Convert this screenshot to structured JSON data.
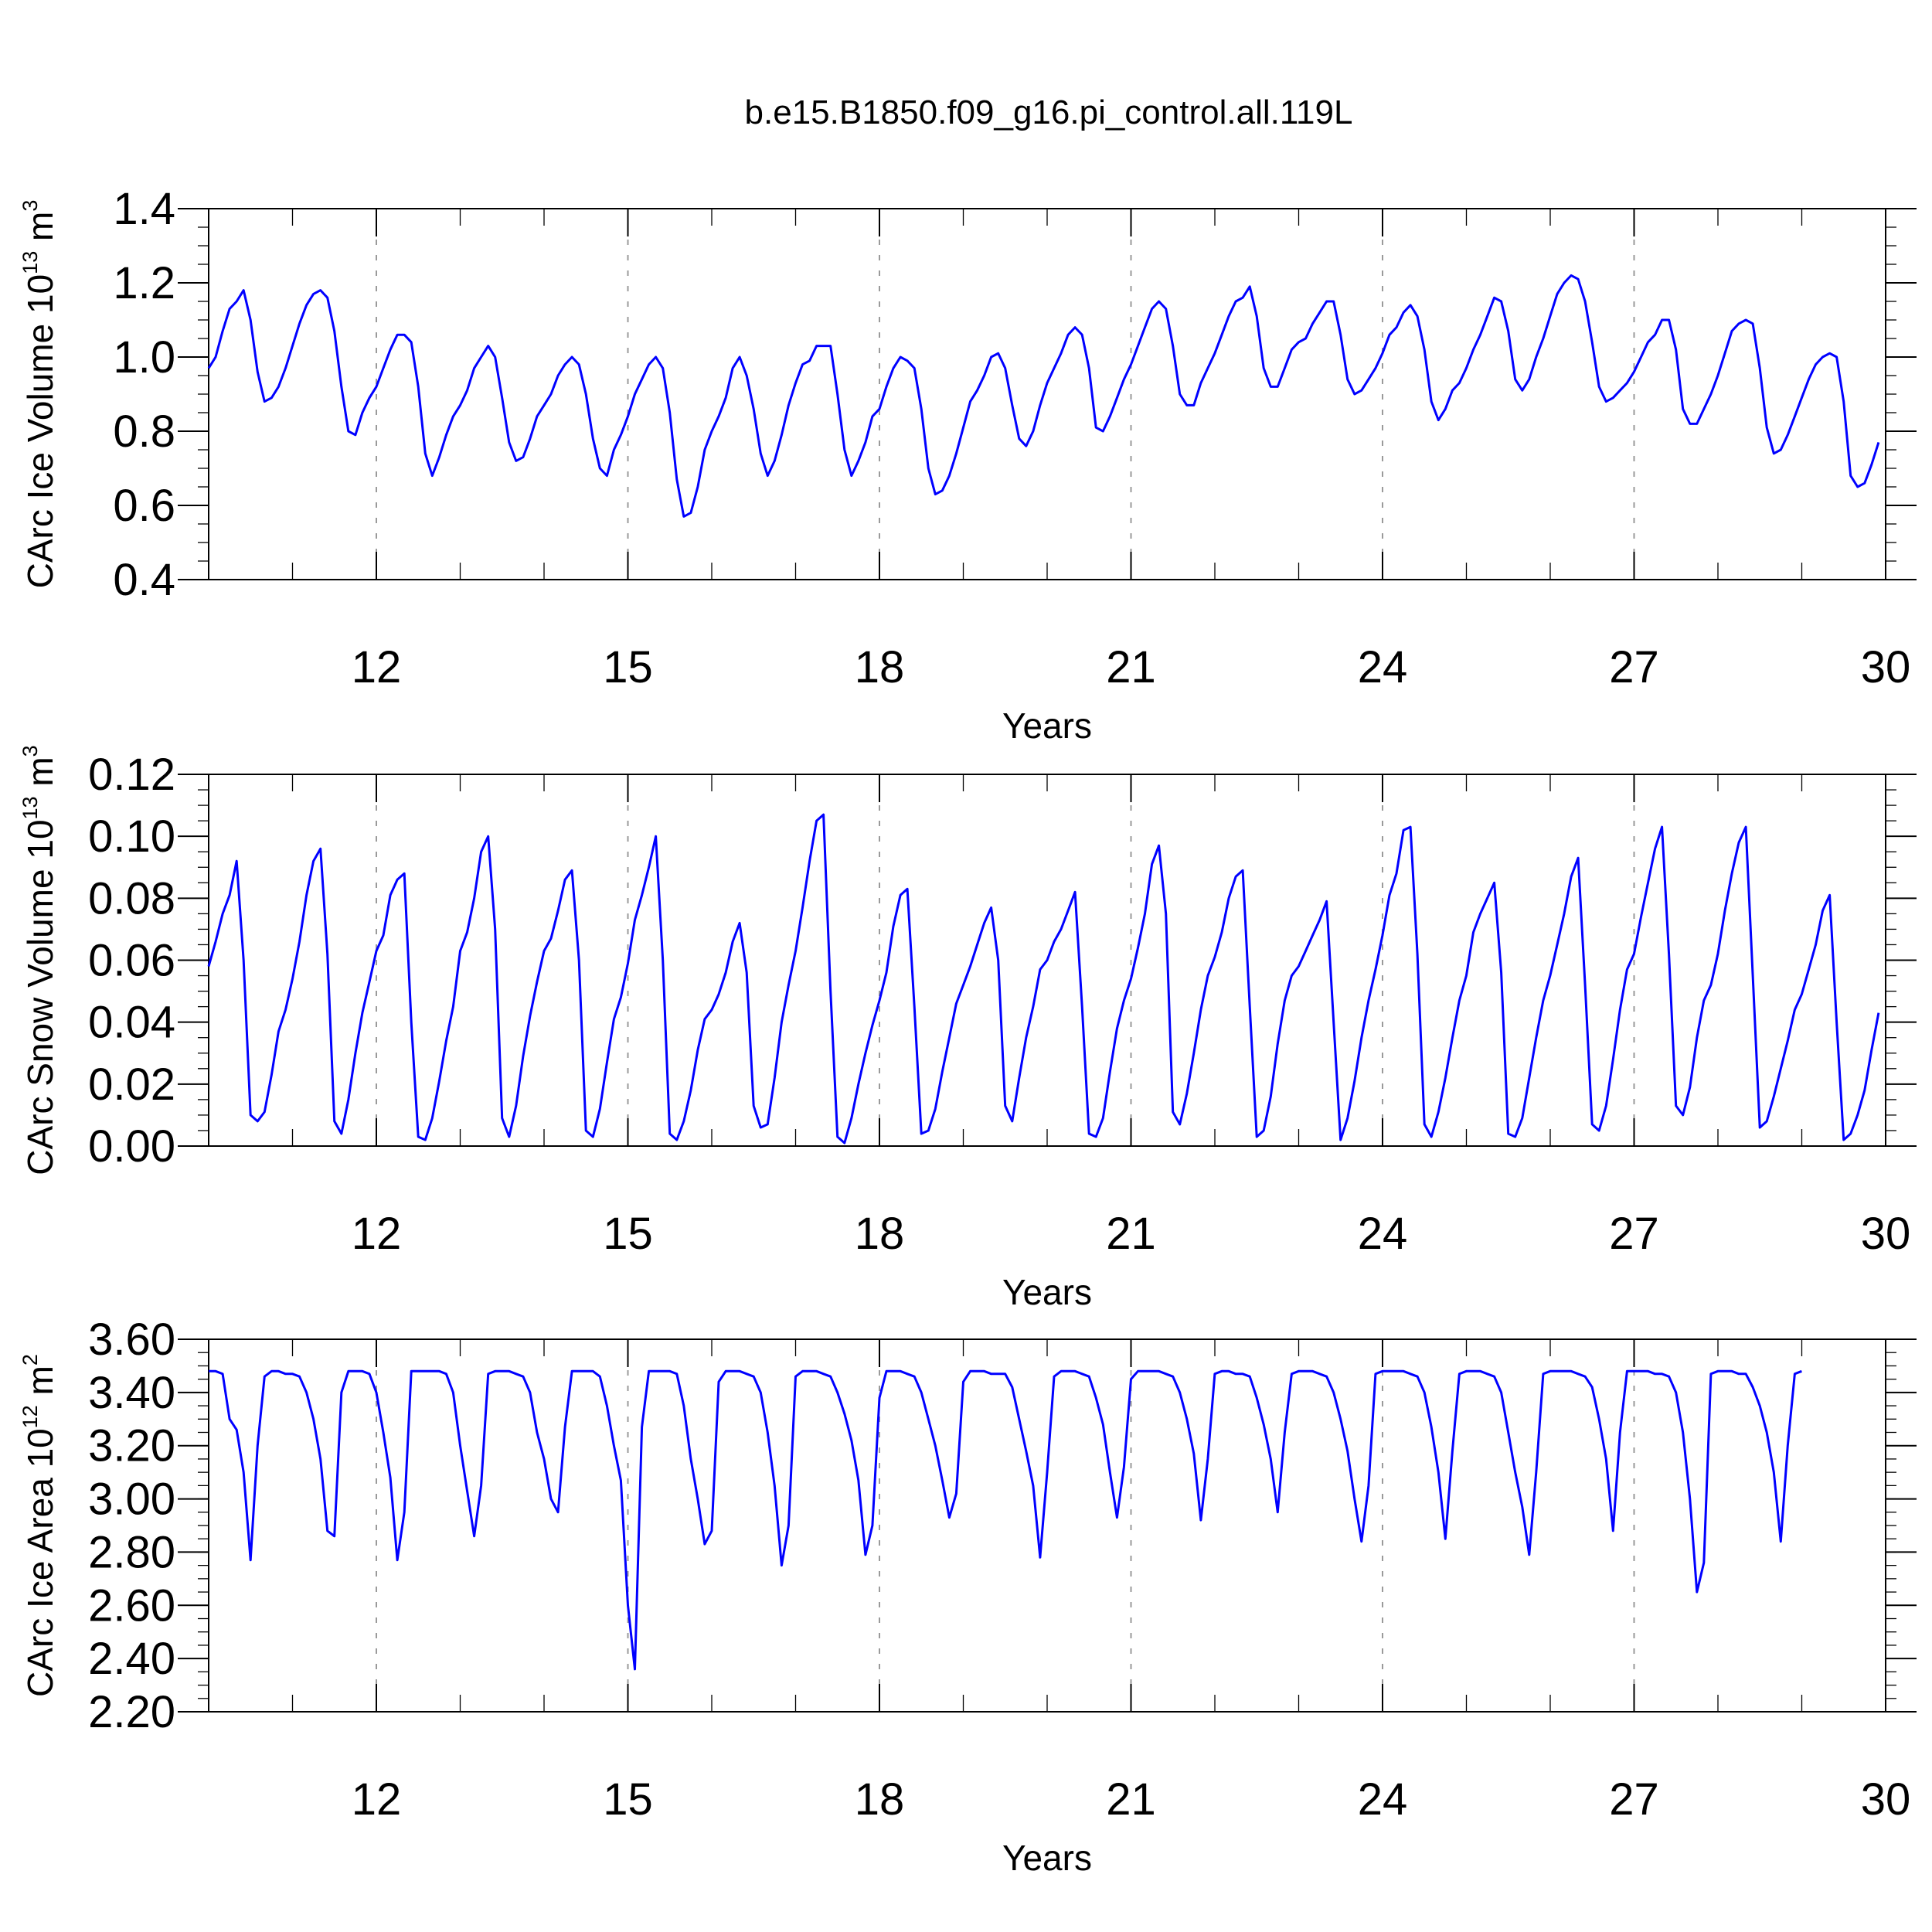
{
  "title": "b.e15.B1850.f09_g16.pi_control.all.119L",
  "line_color": "#0000ff",
  "chart_data": [
    {
      "type": "line",
      "name": "ice-volume",
      "ylabel_text": "CArc Ice Volume 10",
      "ylabel_exp": "13",
      "ylabel_unit": "m",
      "ylabel_unit_exp": "3",
      "xlabel": "Years",
      "xlim": [
        10.0,
        30.0
      ],
      "xticks": [
        12,
        15,
        18,
        21,
        24,
        27,
        30
      ],
      "ylim": [
        0.4,
        1.4
      ],
      "yticks": [
        0.4,
        0.6,
        0.8,
        1.0,
        1.2,
        1.4
      ],
      "ytick_labels": [
        "0.4",
        "0.6",
        "0.8",
        "1.0",
        "1.2",
        "1.4"
      ],
      "y_minor_step": 0.05,
      "x_start": 10.0,
      "x_step": 0.08333,
      "values": [
        0.97,
        1.0,
        1.07,
        1.13,
        1.15,
        1.18,
        1.1,
        0.96,
        0.88,
        0.89,
        0.92,
        0.97,
        1.03,
        1.09,
        1.14,
        1.17,
        1.18,
        1.16,
        1.07,
        0.92,
        0.8,
        0.79,
        0.85,
        0.89,
        0.92,
        0.97,
        1.02,
        1.06,
        1.06,
        1.04,
        0.92,
        0.74,
        0.68,
        0.73,
        0.79,
        0.84,
        0.87,
        0.91,
        0.97,
        1.0,
        1.03,
        1.0,
        0.89,
        0.77,
        0.72,
        0.73,
        0.78,
        0.84,
        0.87,
        0.9,
        0.95,
        0.98,
        1.0,
        0.98,
        0.9,
        0.78,
        0.7,
        0.68,
        0.75,
        0.79,
        0.84,
        0.9,
        0.94,
        0.98,
        1.0,
        0.97,
        0.85,
        0.67,
        0.57,
        0.58,
        0.65,
        0.75,
        0.8,
        0.84,
        0.89,
        0.97,
        1.0,
        0.95,
        0.86,
        0.74,
        0.68,
        0.72,
        0.79,
        0.87,
        0.93,
        0.98,
        0.99,
        1.03,
        1.03,
        1.03,
        0.9,
        0.75,
        0.68,
        0.72,
        0.77,
        0.84,
        0.86,
        0.92,
        0.97,
        1.0,
        0.99,
        0.97,
        0.86,
        0.7,
        0.63,
        0.64,
        0.68,
        0.74,
        0.81,
        0.88,
        0.91,
        0.95,
        1.0,
        1.01,
        0.97,
        0.87,
        0.78,
        0.76,
        0.8,
        0.87,
        0.93,
        0.97,
        1.01,
        1.06,
        1.08,
        1.06,
        0.97,
        0.81,
        0.8,
        0.84,
        0.89,
        0.94,
        0.98,
        1.03,
        1.08,
        1.13,
        1.15,
        1.13,
        1.03,
        0.9,
        0.87,
        0.87,
        0.93,
        0.97,
        1.01,
        1.06,
        1.11,
        1.15,
        1.16,
        1.19,
        1.11,
        0.97,
        0.92,
        0.92,
        0.97,
        1.02,
        1.04,
        1.05,
        1.09,
        1.12,
        1.15,
        1.15,
        1.06,
        0.94,
        0.9,
        0.91,
        0.94,
        0.97,
        1.01,
        1.06,
        1.08,
        1.12,
        1.14,
        1.11,
        1.02,
        0.88,
        0.83,
        0.86,
        0.91,
        0.93,
        0.97,
        1.02,
        1.06,
        1.11,
        1.16,
        1.15,
        1.07,
        0.94,
        0.91,
        0.94,
        1.0,
        1.05,
        1.11,
        1.17,
        1.2,
        1.22,
        1.21,
        1.15,
        1.04,
        0.92,
        0.88,
        0.89,
        0.91,
        0.93,
        0.96,
        1.0,
        1.04,
        1.06,
        1.1,
        1.1,
        1.02,
        0.86,
        0.82,
        0.82,
        0.86,
        0.9,
        0.95,
        1.01,
        1.07,
        1.09,
        1.1,
        1.09,
        0.97,
        0.81,
        0.74,
        0.75,
        0.79,
        0.84,
        0.89,
        0.94,
        0.98,
        1.0,
        1.01,
        1.0,
        0.88,
        0.68,
        0.65,
        0.66,
        0.71,
        0.77
      ]
    },
    {
      "type": "line",
      "name": "snow-volume",
      "ylabel_text": "CArc Snow Volume 10",
      "ylabel_exp": "13",
      "ylabel_unit": "m",
      "ylabel_unit_exp": "3",
      "xlabel": "Years",
      "xlim": [
        10.0,
        30.0
      ],
      "xticks": [
        12,
        15,
        18,
        21,
        24,
        27,
        30
      ],
      "ylim": [
        0.0,
        0.12
      ],
      "yticks": [
        0.0,
        0.02,
        0.04,
        0.06,
        0.08,
        0.1,
        0.12
      ],
      "ytick_labels": [
        "0.00",
        "0.02",
        "0.04",
        "0.06",
        "0.08",
        "0.10",
        "0.12"
      ],
      "y_minor_step": 0.005,
      "x_start": 10.0,
      "x_step": 0.08333,
      "values": [
        0.058,
        0.066,
        0.075,
        0.081,
        0.092,
        0.06,
        0.01,
        0.008,
        0.011,
        0.023,
        0.037,
        0.044,
        0.054,
        0.066,
        0.081,
        0.092,
        0.096,
        0.062,
        0.008,
        0.004,
        0.015,
        0.03,
        0.043,
        0.053,
        0.063,
        0.068,
        0.081,
        0.086,
        0.088,
        0.04,
        0.003,
        0.002,
        0.009,
        0.021,
        0.034,
        0.045,
        0.063,
        0.069,
        0.08,
        0.095,
        0.1,
        0.07,
        0.009,
        0.003,
        0.013,
        0.029,
        0.042,
        0.053,
        0.063,
        0.067,
        0.076,
        0.086,
        0.089,
        0.06,
        0.005,
        0.003,
        0.012,
        0.027,
        0.041,
        0.048,
        0.059,
        0.073,
        0.081,
        0.09,
        0.1,
        0.06,
        0.004,
        0.002,
        0.008,
        0.018,
        0.031,
        0.041,
        0.044,
        0.049,
        0.056,
        0.066,
        0.072,
        0.056,
        0.013,
        0.006,
        0.007,
        0.022,
        0.04,
        0.052,
        0.063,
        0.077,
        0.092,
        0.105,
        0.107,
        0.05,
        0.003,
        0.001,
        0.009,
        0.02,
        0.03,
        0.039,
        0.047,
        0.056,
        0.071,
        0.081,
        0.083,
        0.045,
        0.004,
        0.005,
        0.012,
        0.024,
        0.035,
        0.046,
        0.052,
        0.058,
        0.065,
        0.072,
        0.077,
        0.06,
        0.013,
        0.008,
        0.022,
        0.035,
        0.045,
        0.057,
        0.06,
        0.066,
        0.07,
        0.076,
        0.082,
        0.045,
        0.004,
        0.003,
        0.009,
        0.024,
        0.038,
        0.047,
        0.054,
        0.064,
        0.075,
        0.091,
        0.097,
        0.075,
        0.011,
        0.007,
        0.017,
        0.03,
        0.044,
        0.055,
        0.061,
        0.069,
        0.08,
        0.087,
        0.089,
        0.045,
        0.003,
        0.005,
        0.016,
        0.033,
        0.047,
        0.055,
        0.058,
        0.063,
        0.068,
        0.073,
        0.079,
        0.04,
        0.002,
        0.009,
        0.021,
        0.035,
        0.047,
        0.057,
        0.068,
        0.081,
        0.088,
        0.102,
        0.103,
        0.062,
        0.007,
        0.003,
        0.011,
        0.022,
        0.035,
        0.047,
        0.055,
        0.069,
        0.075,
        0.08,
        0.085,
        0.056,
        0.004,
        0.003,
        0.009,
        0.022,
        0.035,
        0.047,
        0.055,
        0.065,
        0.075,
        0.087,
        0.093,
        0.052,
        0.007,
        0.005,
        0.013,
        0.028,
        0.044,
        0.057,
        0.062,
        0.074,
        0.085,
        0.096,
        0.103,
        0.062,
        0.013,
        0.01,
        0.019,
        0.035,
        0.047,
        0.052,
        0.062,
        0.076,
        0.088,
        0.098,
        0.103,
        0.055,
        0.006,
        0.008,
        0.016,
        0.025,
        0.034,
        0.044,
        0.049,
        0.057,
        0.065,
        0.076,
        0.081,
        0.04,
        0.002,
        0.004,
        0.01,
        0.018,
        0.031,
        0.043
      ]
    },
    {
      "type": "line",
      "name": "ice-area",
      "ylabel_text": "CArc Ice Area 10",
      "ylabel_exp": "12",
      "ylabel_unit": "m",
      "ylabel_unit_exp": "2",
      "xlabel": "Years",
      "xlim": [
        10.0,
        30.0
      ],
      "xticks": [
        12,
        15,
        18,
        21,
        24,
        27,
        30
      ],
      "ylim": [
        2.2,
        3.6
      ],
      "yticks": [
        2.2,
        2.4,
        2.6,
        2.8,
        3.0,
        3.2,
        3.4,
        3.6
      ],
      "ytick_labels": [
        "2.20",
        "2.40",
        "2.60",
        "2.80",
        "3.00",
        "3.20",
        "3.40",
        "3.60"
      ],
      "y_minor_step": 0.05,
      "x_start": 10.0,
      "x_step": 0.08333,
      "values": [
        3.48,
        3.48,
        3.47,
        3.3,
        3.26,
        3.1,
        2.77,
        3.2,
        3.46,
        3.48,
        3.48,
        3.47,
        3.47,
        3.46,
        3.4,
        3.3,
        3.15,
        2.88,
        2.86,
        3.4,
        3.48,
        3.48,
        3.48,
        3.47,
        3.4,
        3.25,
        3.08,
        2.77,
        2.95,
        3.48,
        3.48,
        3.48,
        3.48,
        3.48,
        3.47,
        3.4,
        3.2,
        3.03,
        2.86,
        3.05,
        3.47,
        3.48,
        3.48,
        3.48,
        3.47,
        3.46,
        3.4,
        3.25,
        3.15,
        3.0,
        2.95,
        3.27,
        3.48,
        3.48,
        3.48,
        3.48,
        3.46,
        3.35,
        3.2,
        3.07,
        2.6,
        2.36,
        3.27,
        3.48,
        3.48,
        3.48,
        3.48,
        3.47,
        3.35,
        3.15,
        3.0,
        2.83,
        2.88,
        3.44,
        3.48,
        3.48,
        3.48,
        3.47,
        3.46,
        3.4,
        3.25,
        3.05,
        2.75,
        2.9,
        3.46,
        3.48,
        3.48,
        3.48,
        3.47,
        3.46,
        3.4,
        3.32,
        3.22,
        3.07,
        2.79,
        2.9,
        3.38,
        3.48,
        3.48,
        3.48,
        3.47,
        3.46,
        3.4,
        3.3,
        3.2,
        3.07,
        2.93,
        3.02,
        3.44,
        3.48,
        3.48,
        3.48,
        3.47,
        3.47,
        3.47,
        3.42,
        3.3,
        3.18,
        3.05,
        2.78,
        3.1,
        3.46,
        3.48,
        3.48,
        3.48,
        3.47,
        3.46,
        3.38,
        3.28,
        3.1,
        2.93,
        3.12,
        3.45,
        3.48,
        3.48,
        3.48,
        3.48,
        3.47,
        3.46,
        3.4,
        3.3,
        3.17,
        2.92,
        3.15,
        3.47,
        3.48,
        3.48,
        3.47,
        3.47,
        3.46,
        3.38,
        3.28,
        3.15,
        2.95,
        3.25,
        3.47,
        3.48,
        3.48,
        3.48,
        3.47,
        3.46,
        3.4,
        3.3,
        3.18,
        3.0,
        2.84,
        3.05,
        3.47,
        3.48,
        3.48,
        3.48,
        3.48,
        3.47,
        3.46,
        3.4,
        3.27,
        3.1,
        2.85,
        3.18,
        3.47,
        3.48,
        3.48,
        3.48,
        3.47,
        3.46,
        3.4,
        3.25,
        3.1,
        2.97,
        2.79,
        3.1,
        3.47,
        3.48,
        3.48,
        3.48,
        3.48,
        3.47,
        3.46,
        3.42,
        3.3,
        3.15,
        2.88,
        3.25,
        3.48,
        3.48,
        3.48,
        3.48,
        3.47,
        3.47,
        3.46,
        3.4,
        3.25,
        3.0,
        2.65,
        2.76,
        3.47,
        3.48,
        3.48,
        3.48,
        3.47,
        3.47,
        3.42,
        3.35,
        3.25,
        3.1,
        2.84,
        3.2,
        3.47,
        3.48
      ]
    }
  ]
}
